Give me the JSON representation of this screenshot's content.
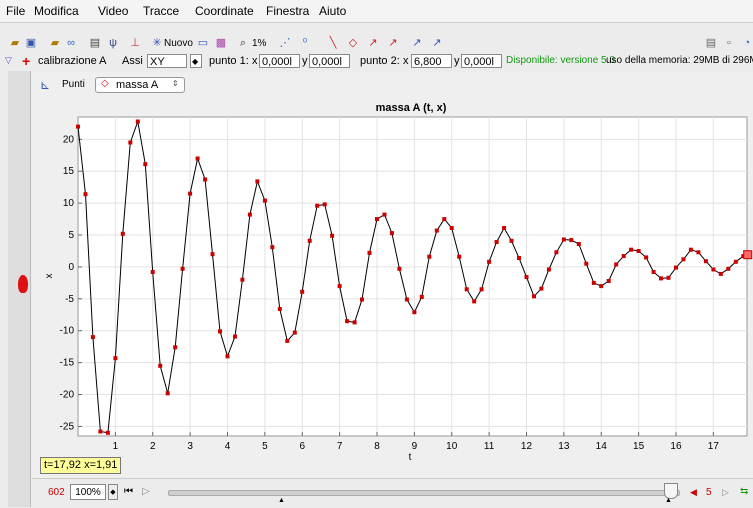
{
  "menu": [
    "File",
    "Modifica",
    "Video",
    "Tracce",
    "Coordinate",
    "Finestra",
    "Aiuto"
  ],
  "toolbar": {
    "new_label": "Nuovo",
    "zoom_label": "1%"
  },
  "calibration": {
    "label": "calibrazione A",
    "axes_label": "Assi",
    "axes_value": "XY",
    "p1_label": "punto 1:",
    "p1_x": "0,000l",
    "p1_y": "0,000l",
    "p2_label": "punto 2:",
    "p2_x": "6,800",
    "p2_y": "0,000l",
    "version_notice": "Disponibile: versione 5.0",
    "memory": "uso della memoria: 29MB di 296M",
    "x_label": "x",
    "y_label": "y"
  },
  "plot_header": {
    "mode_label": "Punti",
    "track": "massa A"
  },
  "readout": "t=17,92  x=1,91",
  "playback": {
    "frame": "602",
    "zoom": "100%",
    "step": "5"
  },
  "colors": {
    "marker": "#cc0000",
    "line": "#000000",
    "version": "#119911",
    "readout_bg": "#ffff99"
  },
  "chart_data": {
    "type": "line",
    "title": "massa A (t, x)",
    "xlabel": "t",
    "ylabel": "x",
    "xlim": [
      0,
      17.9
    ],
    "ylim": [
      -26.5,
      23.5
    ],
    "xticks": [
      1,
      2,
      3,
      4,
      5,
      6,
      7,
      8,
      9,
      10,
      11,
      12,
      13,
      14,
      15,
      16,
      17
    ],
    "yticks": [
      20,
      15,
      10,
      5,
      0,
      -5,
      -10,
      -15,
      -20,
      -25
    ],
    "grid": true,
    "x": [
      0.0,
      0.2,
      0.4,
      0.6,
      0.8,
      1.0,
      1.2,
      1.4,
      1.6,
      1.8,
      2.0,
      2.2,
      2.4,
      2.6,
      2.8,
      3.0,
      3.2,
      3.4,
      3.6,
      3.8,
      4.0,
      4.2,
      4.4,
      4.6,
      4.8,
      5.0,
      5.2,
      5.4,
      5.6,
      5.8,
      6.0,
      6.2,
      6.4,
      6.6,
      6.8,
      7.0,
      7.2,
      7.4,
      7.6,
      7.8,
      8.0,
      8.2,
      8.4,
      8.6,
      8.8,
      9.0,
      9.2,
      9.4,
      9.6,
      9.8,
      10.0,
      10.2,
      10.4,
      10.6,
      10.8,
      11.0,
      11.2,
      11.4,
      11.6,
      11.8,
      12.0,
      12.2,
      12.4,
      12.6,
      12.8,
      13.0,
      13.2,
      13.4,
      13.6,
      13.8,
      14.0,
      14.2,
      14.4,
      14.6,
      14.8,
      15.0,
      15.2,
      15.4,
      15.6,
      15.8,
      16.0,
      16.2,
      16.4,
      16.6,
      16.8,
      17.0,
      17.2,
      17.4,
      17.6,
      17.8,
      17.92
    ],
    "values": [
      22,
      11.4,
      -11,
      -25.8,
      -26,
      -14.3,
      5.2,
      19.5,
      22.8,
      16.1,
      -0.8,
      -15.5,
      -19.8,
      -12.6,
      -0.3,
      11.5,
      17,
      13.7,
      2,
      -10.1,
      -14,
      -10.9,
      -2,
      8.2,
      13.4,
      10.4,
      3.1,
      -6.6,
      -11.6,
      -10.3,
      -3.9,
      4.1,
      9.6,
      9.8,
      4.9,
      -3,
      -8.5,
      -8.7,
      -5.1,
      2.2,
      7.5,
      8.2,
      5.3,
      -0.3,
      -5.1,
      -7.1,
      -4.7,
      1.6,
      5.7,
      7.5,
      6.1,
      1.6,
      -3.5,
      -5.4,
      -3.5,
      0.8,
      3.9,
      6.1,
      4.1,
      1.4,
      -1.6,
      -4.6,
      -3.4,
      -0.4,
      2.3,
      4.3,
      4.2,
      3.6,
      0.5,
      -2.5,
      -3,
      -2.2,
      0.4,
      1.7,
      2.7,
      2.5,
      1.5,
      -0.8,
      -1.8,
      -1.7,
      -0.1,
      1.2,
      2.7,
      2.3,
      0.9,
      -0.4,
      -1.1,
      -0.3,
      0.8,
      1.7,
      1.91
    ]
  }
}
